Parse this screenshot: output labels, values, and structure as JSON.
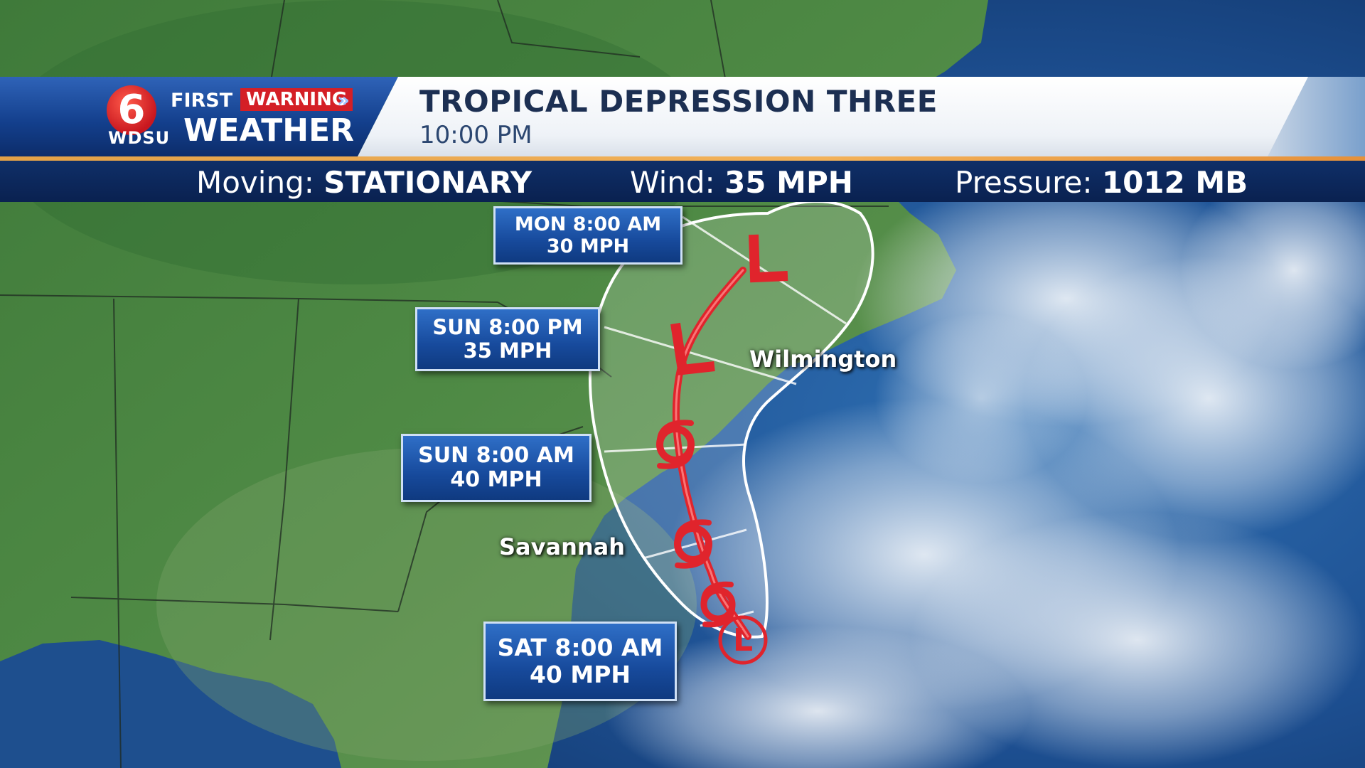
{
  "branding": {
    "channel_number": "6",
    "first": "FIRST",
    "warning": "WARNING",
    "station": "WDSU",
    "weather": "WEATHER"
  },
  "header": {
    "title": "TROPICAL DEPRESSION THREE",
    "time": "10:00 PM"
  },
  "info_bar": {
    "moving_label": "Moving:",
    "moving_value": "STATIONARY",
    "wind_label": "Wind:",
    "wind_value": "35 MPH",
    "pressure_label": "Pressure:",
    "pressure_value": "1012 MB"
  },
  "forecast_points": [
    {
      "time": "SAT 8:00 AM",
      "wind": "40 MPH",
      "symbol": "L"
    },
    {
      "time": "SUN 8:00 AM",
      "wind": "40 MPH",
      "symbol": "tropical-storm"
    },
    {
      "time": "SUN 8:00 PM",
      "wind": "35 MPH",
      "symbol": "L"
    },
    {
      "time": "MON 8:00 AM",
      "wind": "30 MPH",
      "symbol": "L"
    }
  ],
  "cities": {
    "wilmington": "Wilmington",
    "savannah": "Savannah"
  },
  "colors": {
    "track": "#e0242c",
    "cone_outline": "#ffffff",
    "label_box": "#174a9c",
    "warning_red": "#d41f26"
  }
}
